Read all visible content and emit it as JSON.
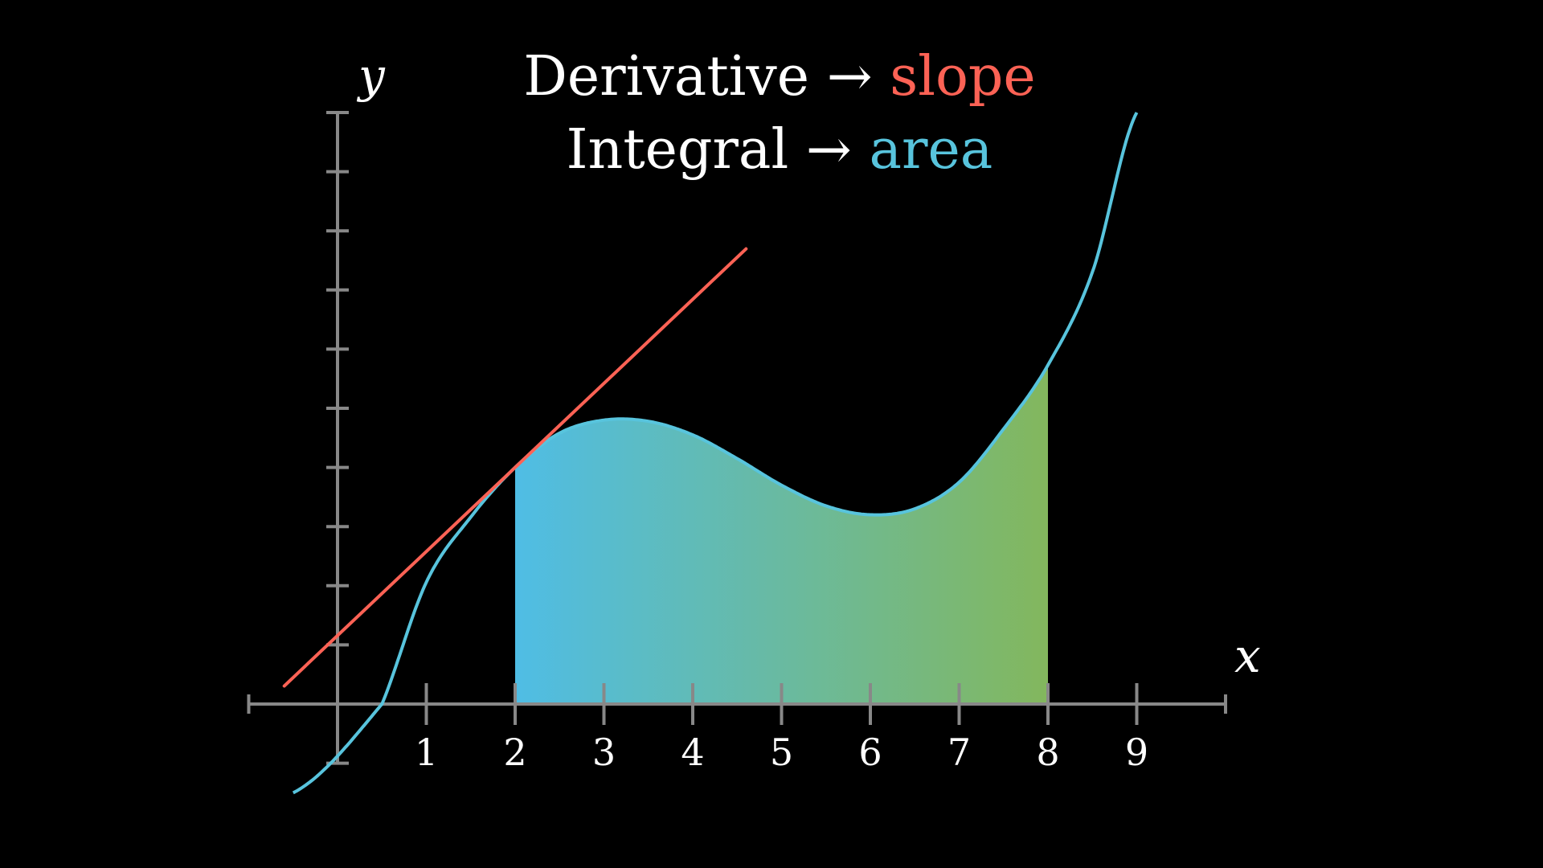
{
  "heading": {
    "line1": {
      "prefix": "Derivative",
      "arrow": "→",
      "emphasis": "slope"
    },
    "line2": {
      "prefix": "Integral",
      "arrow": "→",
      "emphasis": "area"
    }
  },
  "colors": {
    "background": "#000000",
    "axis": "#888888",
    "curve": "#58c4dd",
    "tangent": "#fc6255",
    "area_start": "#4fbde5",
    "area_end": "#83b75d",
    "text": "#ffffff"
  },
  "axes": {
    "x_label": "x",
    "y_label": "y",
    "x_range": [
      -1,
      10
    ],
    "y_range": [
      -1,
      10
    ],
    "x_tick_labels": [
      "1",
      "2",
      "3",
      "4",
      "5",
      "6",
      "7",
      "8",
      "9"
    ]
  },
  "chart_data": {
    "type": "line",
    "curve": {
      "x": [
        -0.5,
        0.5,
        1.0,
        1.5,
        2.0,
        2.5,
        3.0,
        3.5,
        4.0,
        4.5,
        5.0,
        5.5,
        6.0,
        6.5,
        7.0,
        7.5,
        8.0,
        8.5,
        9.0
      ],
      "y": [
        -1.5,
        0.0,
        2.06,
        3.16,
        4.0,
        4.58,
        4.8,
        4.78,
        4.55,
        4.15,
        3.7,
        3.35,
        3.2,
        3.3,
        3.75,
        4.65,
        5.73,
        7.3,
        10.0
      ]
    },
    "tangent": {
      "point_x": 2,
      "point_y": 4,
      "x_range": [
        -0.6,
        4.6
      ]
    },
    "area": {
      "x_from": 2,
      "x_to": 8
    }
  }
}
